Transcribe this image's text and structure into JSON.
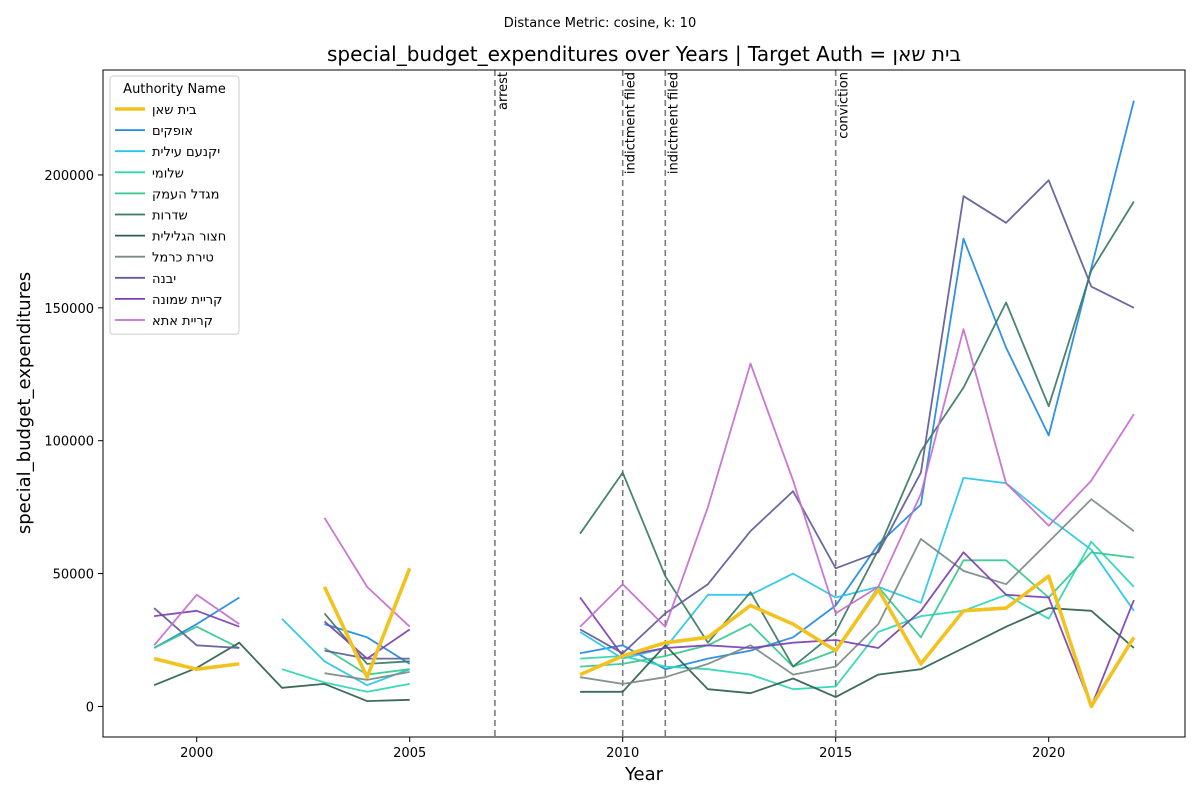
{
  "chart_data": {
    "type": "line",
    "suptitle": "Distance Metric: cosine, k: 10",
    "title": "special_budget_expenditures over Years | Target Auth = בית שאן",
    "xlabel": "Year",
    "ylabel": "special_budget_expenditures",
    "xlim": [
      1997.8,
      2023.2
    ],
    "ylim": [
      -11500,
      239500
    ],
    "xticks": [
      2000,
      2005,
      2010,
      2015,
      2020
    ],
    "yticks": [
      0,
      50000,
      100000,
      150000,
      200000
    ],
    "ytick_labels": [
      "0",
      "50000",
      "100000",
      "150000",
      "200000"
    ],
    "grid": false,
    "legend": {
      "title": "Authority Name",
      "placement": "top-left"
    },
    "events": [
      {
        "year": 2007,
        "label": "arrest"
      },
      {
        "year": 2010,
        "label": "indictment filed"
      },
      {
        "year": 2011,
        "label": "indictment filed"
      },
      {
        "year": 2015,
        "label": "conviction"
      }
    ],
    "x": [
      1999,
      2000,
      2001,
      2002,
      2003,
      2004,
      2005,
      2006,
      2007,
      2008,
      2009,
      2010,
      2011,
      2012,
      2013,
      2014,
      2015,
      2016,
      2017,
      2018,
      2019,
      2020,
      2021,
      2022
    ],
    "series": [
      {
        "name": "בית שאן",
        "color": "#f2c31f",
        "target": true,
        "values": [
          18000,
          14000,
          16000,
          null,
          45000,
          11000,
          52000,
          null,
          null,
          null,
          12000,
          19000,
          24000,
          26000,
          38000,
          31000,
          21000,
          44000,
          16000,
          36000,
          37000,
          49000,
          0,
          26000
        ]
      },
      {
        "name": "אופקים",
        "color": "#1f88e5",
        "values": [
          22000,
          31000,
          41000,
          null,
          31000,
          26000,
          16000,
          null,
          null,
          null,
          20000,
          23000,
          14000,
          18000,
          21000,
          26000,
          38000,
          61000,
          76000,
          176000,
          135000,
          102000,
          165000,
          228000
        ]
      },
      {
        "name": "יקנעם עילית",
        "color": "#26c6e8",
        "values": [
          null,
          null,
          null,
          33000,
          17000,
          8000,
          14000,
          null,
          null,
          null,
          28000,
          18000,
          22000,
          42000,
          42000,
          50000,
          41000,
          45000,
          39000,
          86000,
          84000,
          71000,
          59000,
          36000
        ]
      },
      {
        "name": "שלומי",
        "color": "#2ad6b4",
        "values": [
          null,
          null,
          null,
          14000,
          9000,
          5500,
          8500,
          null,
          null,
          null,
          18000,
          19000,
          15000,
          14000,
          12000,
          6500,
          7500,
          28000,
          34000,
          36000,
          42000,
          33000,
          62000,
          45000
        ]
      },
      {
        "name": "מגדל העמק",
        "color": "#34c98c",
        "values": [
          22000,
          30000,
          22000,
          null,
          22000,
          12000,
          14000,
          null,
          null,
          null,
          15000,
          16000,
          19000,
          23000,
          31000,
          15000,
          21000,
          45000,
          26000,
          55000,
          55000,
          41000,
          58000,
          56000
        ]
      },
      {
        "name": "שדרות",
        "color": "#3a7a62",
        "values": [
          null,
          null,
          null,
          null,
          35000,
          16000,
          17000,
          null,
          null,
          null,
          65000,
          88000,
          49000,
          24000,
          43000,
          15000,
          28000,
          59000,
          96000,
          120000,
          152000,
          113000,
          164000,
          190000
        ]
      },
      {
        "name": "חצור הגלילית",
        "color": "#2f5e4e",
        "values": [
          8000,
          14500,
          24000,
          7000,
          8500,
          2000,
          2500,
          null,
          null,
          null,
          5500,
          5500,
          23000,
          6500,
          5000,
          10500,
          3500,
          12000,
          14000,
          22000,
          30000,
          37000,
          36000,
          22000
        ]
      },
      {
        "name": "טירת כרמל",
        "color": "#7b8a86",
        "values": [
          null,
          null,
          null,
          null,
          12500,
          10000,
          13000,
          null,
          null,
          null,
          11000,
          8500,
          11000,
          16000,
          23000,
          12000,
          15000,
          31000,
          63000,
          51000,
          46000,
          62000,
          78000,
          66000
        ]
      },
      {
        "name": "יבנה",
        "color": "#5e5c98",
        "values": [
          37000,
          23000,
          22000,
          null,
          21000,
          18000,
          18000,
          null,
          null,
          null,
          29000,
          20000,
          35000,
          46000,
          66000,
          81000,
          52000,
          58000,
          88000,
          192000,
          182000,
          198000,
          158000,
          150000
        ]
      },
      {
        "name": "קריית שמונה",
        "color": "#7d3fb3",
        "values": [
          34000,
          36000,
          30000,
          null,
          32000,
          18000,
          29000,
          null,
          null,
          null,
          41000,
          19000,
          22000,
          23000,
          22000,
          24000,
          25000,
          22000,
          36000,
          58000,
          42000,
          41000,
          0,
          40000
        ]
      },
      {
        "name": "קריית אתא",
        "color": "#c76bd0",
        "values": [
          23000,
          42000,
          31000,
          null,
          71000,
          45000,
          30000,
          null,
          null,
          null,
          30000,
          46000,
          30000,
          75000,
          129000,
          85000,
          35000,
          45000,
          80000,
          142000,
          84000,
          68000,
          85000,
          110000
        ]
      }
    ]
  }
}
